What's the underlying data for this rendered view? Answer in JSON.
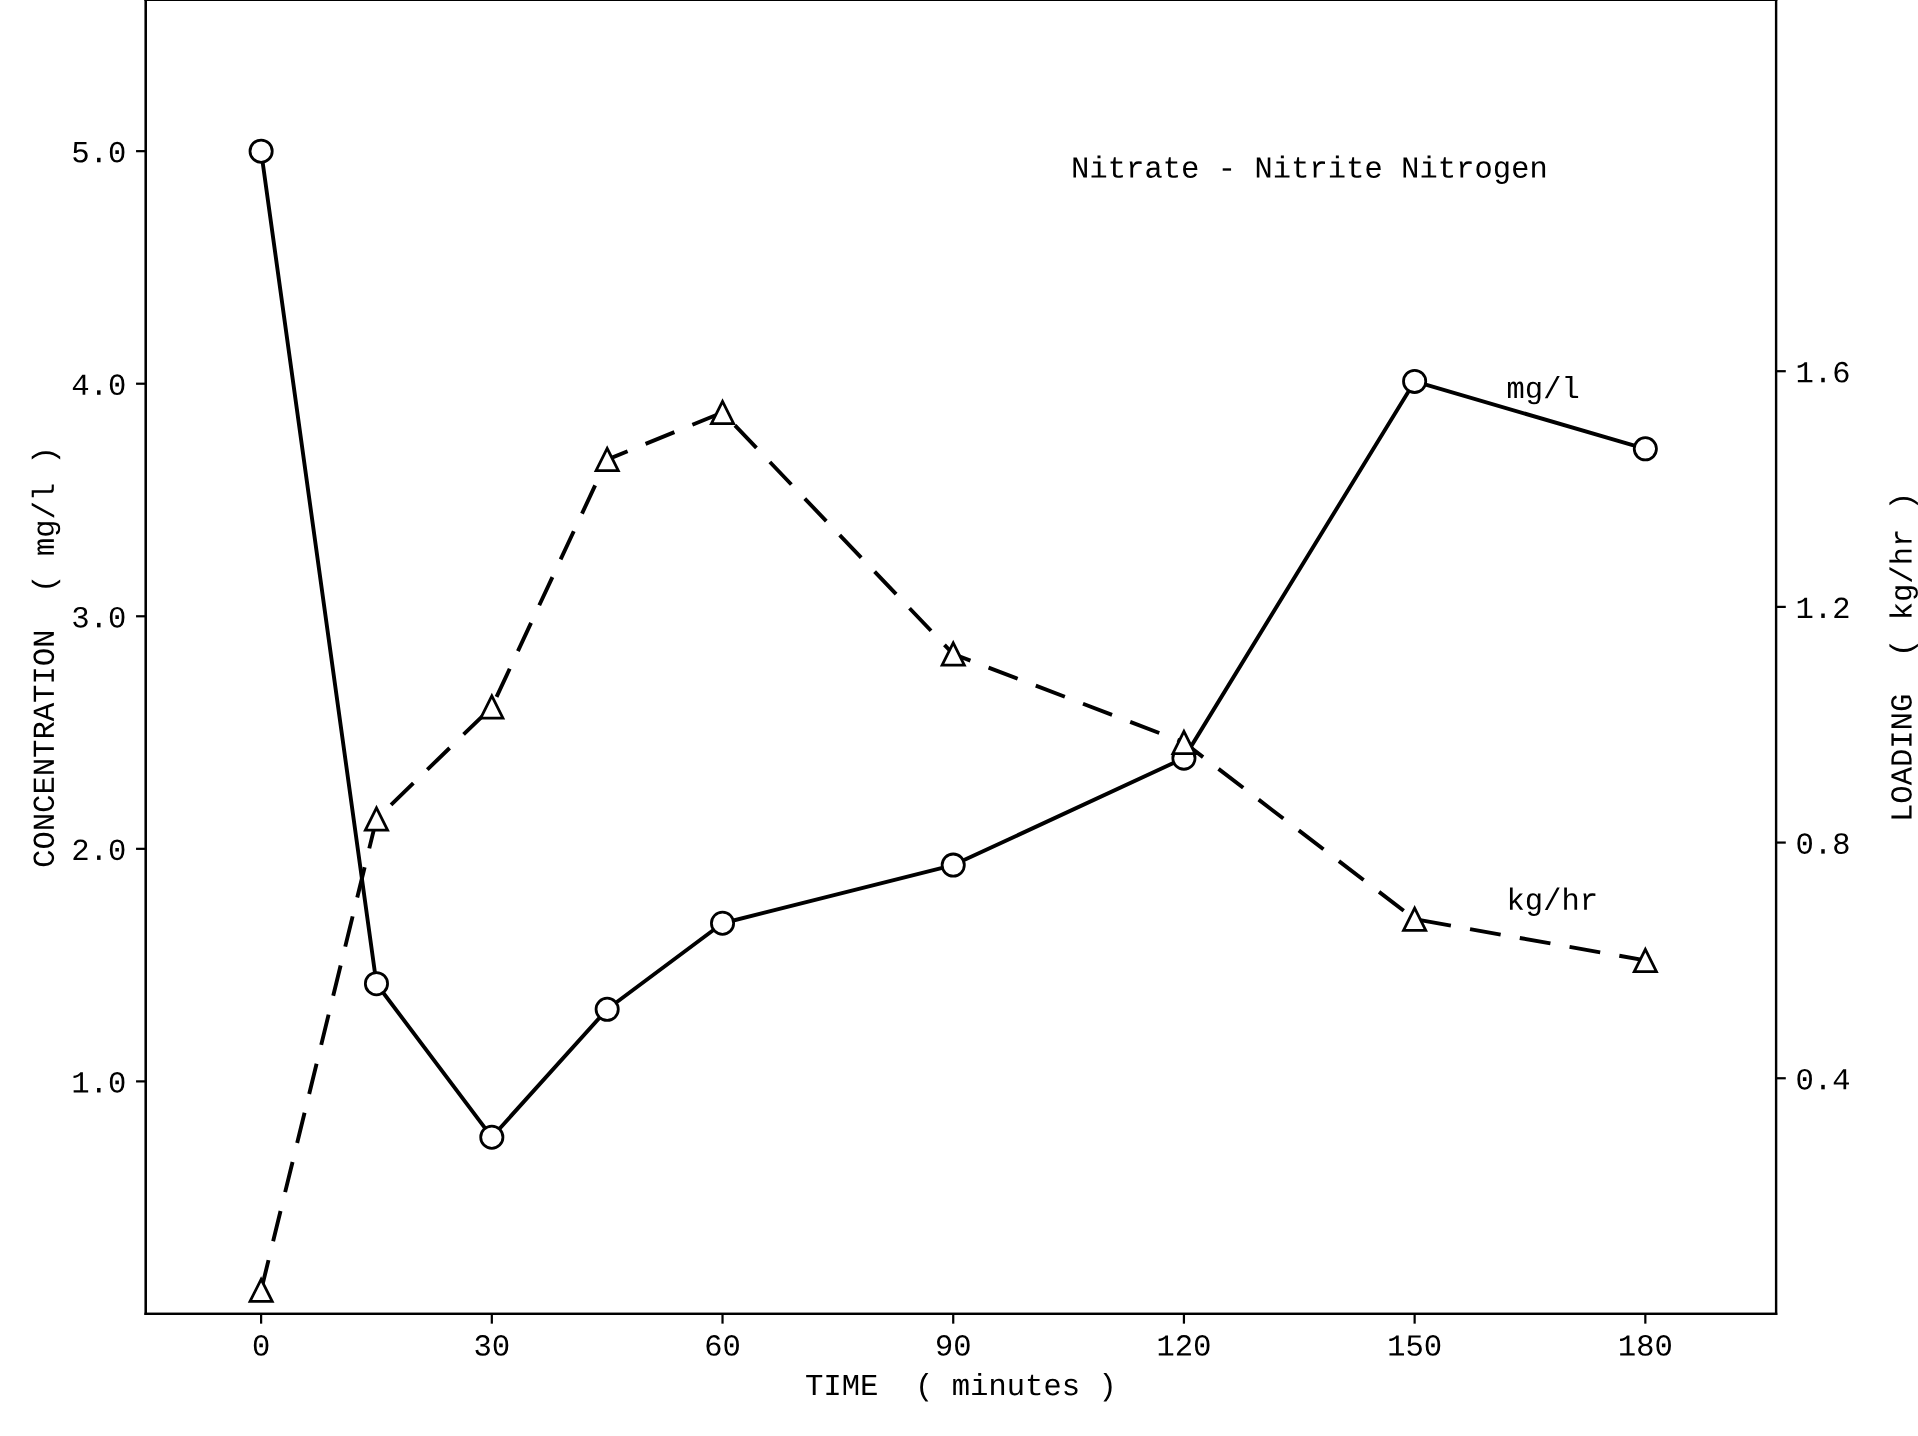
{
  "chart_data": {
    "type": "line",
    "title": "Nitrate - Nitrite Nitrogen",
    "xlabel": "TIME  ( minutes )",
    "ylabel": "CONCENTRATION  ( mg/l )",
    "y2label": "LOADING  ( kg/hr )",
    "x": [
      0,
      15,
      30,
      45,
      60,
      90,
      120,
      150,
      180
    ],
    "series": [
      {
        "name": "mg/l",
        "color": "#000000",
        "marker": "circle",
        "line_style": "solid",
        "values": [
          5.0,
          1.42,
          0.76,
          1.31,
          1.68,
          1.93,
          2.39,
          4.01,
          3.72
        ]
      },
      {
        "name": "kg/hr",
        "color": "#000000",
        "marker": "triangle",
        "line_style": "dashed",
        "axis": "y2",
        "values": [
          0.04,
          0.84,
          1.03,
          1.45,
          1.53,
          1.12,
          0.97,
          0.67,
          0.6
        ]
      }
    ],
    "xlim": [
      -15,
      197
    ],
    "xticks": [
      0,
      30,
      60,
      90,
      120,
      150,
      180
    ],
    "ylim": [
      0,
      5.65
    ],
    "yticks": [
      {
        "value": 1,
        "label": "1.0"
      },
      {
        "value": 2,
        "label": "2.0"
      },
      {
        "value": 3,
        "label": "3.0"
      },
      {
        "value": 4,
        "label": "4.0"
      },
      {
        "value": 5,
        "label": "5.0"
      }
    ],
    "y2lim": [
      0,
      2.23
    ],
    "y2ticks": [
      0.4,
      0.8,
      1.2,
      1.6
    ],
    "grid": false,
    "legend": false
  }
}
